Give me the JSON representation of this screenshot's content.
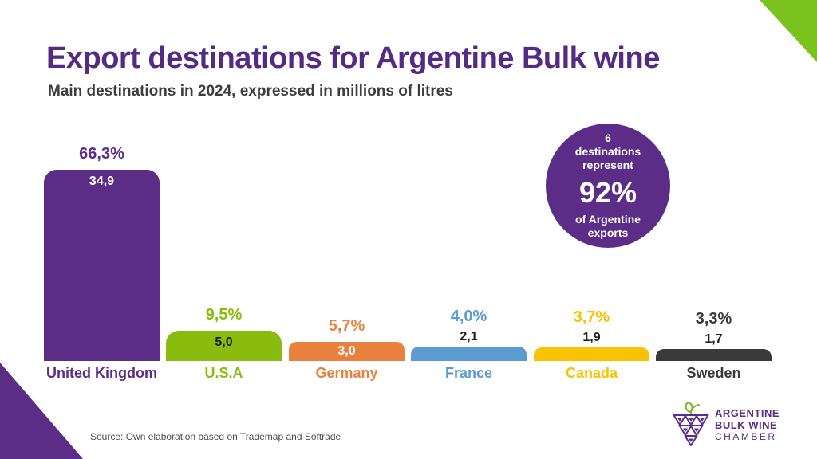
{
  "page": {
    "title": "Export destinations for Argentine Bulk wine",
    "subtitle": "Main destinations in 2024, expressed in millions of litres",
    "source": "Source: Own elaboration based on Trademap and Softrade"
  },
  "colors": {
    "brand_purple": "#5b2d87",
    "title_purple": "#542a85",
    "corner_green": "#7cc21e",
    "subtitle_gray": "#3d3d3d",
    "source_gray": "#4f4f4f"
  },
  "badge": {
    "lines_top": [
      "6",
      "destinations",
      "represent"
    ],
    "big": "92%",
    "lines_bottom": [
      "of Argentine",
      "exports"
    ]
  },
  "logo": {
    "icon": "grape-cluster-icon",
    "line1": "ARGENTINE",
    "line2": "BULK WINE",
    "line3": "CHAMBER"
  },
  "chart_data": {
    "type": "bar",
    "title": "Export destinations for Argentine Bulk wine",
    "subtitle": "Main destinations in 2024, expressed in millions of litres",
    "unit": "millions of litres",
    "xlabel": "",
    "ylabel": "",
    "ylim": [
      0,
      40
    ],
    "grid": false,
    "legend": "none",
    "categories": [
      "United Kingdom",
      "U.S.A",
      "Germany",
      "France",
      "Canada",
      "Sweden"
    ],
    "values": [
      34.9,
      5.0,
      3.0,
      2.1,
      1.9,
      1.7
    ],
    "value_labels": [
      "34,9",
      "5,0",
      "3,0",
      "2,1",
      "1,9",
      "1,7"
    ],
    "percent_labels": [
      "66,3%",
      "9,5%",
      "5,7%",
      "4,0%",
      "3,7%",
      "3,3%"
    ],
    "bar_colors": [
      "#5b2d87",
      "#8abc10",
      "#e8813d",
      "#5b9bd2",
      "#f9c303",
      "#3a3a3a"
    ],
    "value_label_inside": [
      true,
      true,
      true,
      false,
      false,
      false
    ],
    "value_label_colors": [
      "#ffffff",
      "#1f1f1f",
      "#ffffff",
      "#1f1f1f",
      "#1f1f1f",
      "#1f1f1f"
    ]
  }
}
